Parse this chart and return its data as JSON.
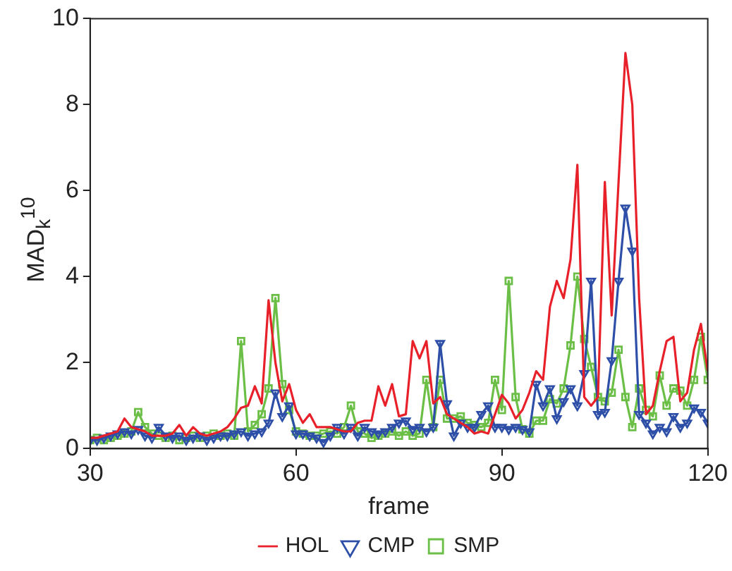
{
  "chart_data": {
    "type": "line",
    "xlabel": "frame",
    "ylabel": "MAD$_{k}$$^{10}$",
    "x": [
      30,
      31,
      32,
      33,
      34,
      35,
      36,
      37,
      38,
      39,
      40,
      41,
      42,
      43,
      44,
      45,
      46,
      47,
      48,
      49,
      50,
      51,
      52,
      53,
      54,
      55,
      56,
      57,
      58,
      59,
      60,
      61,
      62,
      63,
      64,
      65,
      66,
      67,
      68,
      69,
      70,
      71,
      72,
      73,
      74,
      75,
      76,
      77,
      78,
      79,
      80,
      81,
      82,
      83,
      84,
      85,
      86,
      87,
      88,
      89,
      90,
      91,
      92,
      93,
      94,
      95,
      96,
      97,
      98,
      99,
      100,
      101,
      102,
      103,
      104,
      105,
      106,
      107,
      108,
      109,
      110,
      111,
      112,
      113,
      114,
      115,
      116,
      117,
      118,
      119,
      120
    ],
    "xlim": [
      30,
      120
    ],
    "xticks": [
      30,
      60,
      90,
      120
    ],
    "ylim": [
      0,
      10
    ],
    "yticks": [
      0,
      2,
      4,
      6,
      8,
      10
    ],
    "grid": false,
    "legend": "bottom",
    "series": [
      {
        "name": "HOL",
        "color": "#e8202a",
        "marker": "none",
        "values": [
          0.25,
          0.25,
          0.3,
          0.35,
          0.4,
          0.7,
          0.5,
          0.45,
          0.4,
          0.3,
          0.3,
          0.3,
          0.35,
          0.55,
          0.3,
          0.5,
          0.35,
          0.3,
          0.35,
          0.4,
          0.5,
          0.7,
          0.95,
          1.0,
          1.45,
          1.05,
          3.45,
          2.0,
          1.1,
          1.5,
          0.9,
          0.6,
          0.8,
          0.5,
          0.5,
          0.5,
          0.45,
          0.4,
          0.4,
          0.6,
          0.65,
          0.65,
          1.45,
          1.0,
          1.5,
          0.75,
          0.8,
          2.5,
          2.1,
          2.5,
          1.05,
          1.2,
          0.8,
          0.7,
          0.6,
          0.5,
          0.35,
          0.4,
          0.35,
          0.8,
          1.25,
          1.05,
          0.7,
          0.9,
          1.3,
          1.8,
          1.6,
          3.3,
          3.9,
          3.5,
          4.4,
          6.6,
          1.2,
          1.0,
          1.2,
          6.2,
          3.1,
          6.2,
          9.2,
          8.0,
          3.5,
          0.8,
          1.0,
          1.8,
          2.5,
          2.6,
          1.1,
          1.3,
          2.3,
          2.9,
          1.8
        ]
      },
      {
        "name": "CMP",
        "color": "#2e4fa8",
        "marker": "triangle",
        "values": [
          0.2,
          0.2,
          0.25,
          0.3,
          0.35,
          0.4,
          0.35,
          0.45,
          0.3,
          0.25,
          0.5,
          0.3,
          0.25,
          0.3,
          0.2,
          0.25,
          0.3,
          0.2,
          0.25,
          0.3,
          0.3,
          0.35,
          0.4,
          0.3,
          0.35,
          0.4,
          0.6,
          1.3,
          0.75,
          1.0,
          0.35,
          0.35,
          0.3,
          0.25,
          0.15,
          0.3,
          0.5,
          0.35,
          0.5,
          0.3,
          0.5,
          0.4,
          0.35,
          0.4,
          0.5,
          0.6,
          0.65,
          0.45,
          0.5,
          0.4,
          0.5,
          2.45,
          1.05,
          0.3,
          0.6,
          0.5,
          0.5,
          0.8,
          1.0,
          0.5,
          0.5,
          0.45,
          0.5,
          0.45,
          0.4,
          1.5,
          1.0,
          1.4,
          0.7,
          1.1,
          1.4,
          1.0,
          1.75,
          3.9,
          0.8,
          0.85,
          2.05,
          3.9,
          5.6,
          4.6,
          0.8,
          0.6,
          0.35,
          0.5,
          0.4,
          0.75,
          0.5,
          0.6,
          0.95,
          0.85,
          0.6
        ]
      },
      {
        "name": "SMP",
        "color": "#6cbf46",
        "marker": "square",
        "values": [
          0.2,
          0.25,
          0.2,
          0.25,
          0.3,
          0.35,
          0.4,
          0.85,
          0.5,
          0.35,
          0.3,
          0.25,
          0.3,
          0.2,
          0.25,
          0.3,
          0.25,
          0.3,
          0.35,
          0.3,
          0.35,
          0.3,
          2.5,
          0.4,
          0.55,
          0.8,
          1.4,
          3.5,
          1.5,
          0.9,
          0.4,
          0.35,
          0.3,
          0.3,
          0.35,
          0.4,
          0.35,
          0.5,
          1.0,
          0.4,
          0.35,
          0.25,
          0.3,
          0.35,
          0.4,
          0.3,
          0.4,
          0.3,
          0.35,
          1.6,
          0.5,
          1.6,
          0.7,
          0.7,
          0.75,
          0.6,
          0.55,
          0.5,
          0.6,
          1.6,
          0.9,
          3.9,
          1.2,
          0.45,
          0.35,
          0.65,
          0.65,
          1.15,
          1.05,
          1.4,
          2.4,
          4.0,
          2.55,
          1.9,
          1.2,
          1.1,
          1.3,
          2.3,
          1.2,
          0.5,
          1.4,
          0.9,
          0.75,
          1.7,
          1.0,
          1.4,
          1.35,
          1.0,
          1.6,
          2.6,
          1.6
        ]
      }
    ]
  }
}
